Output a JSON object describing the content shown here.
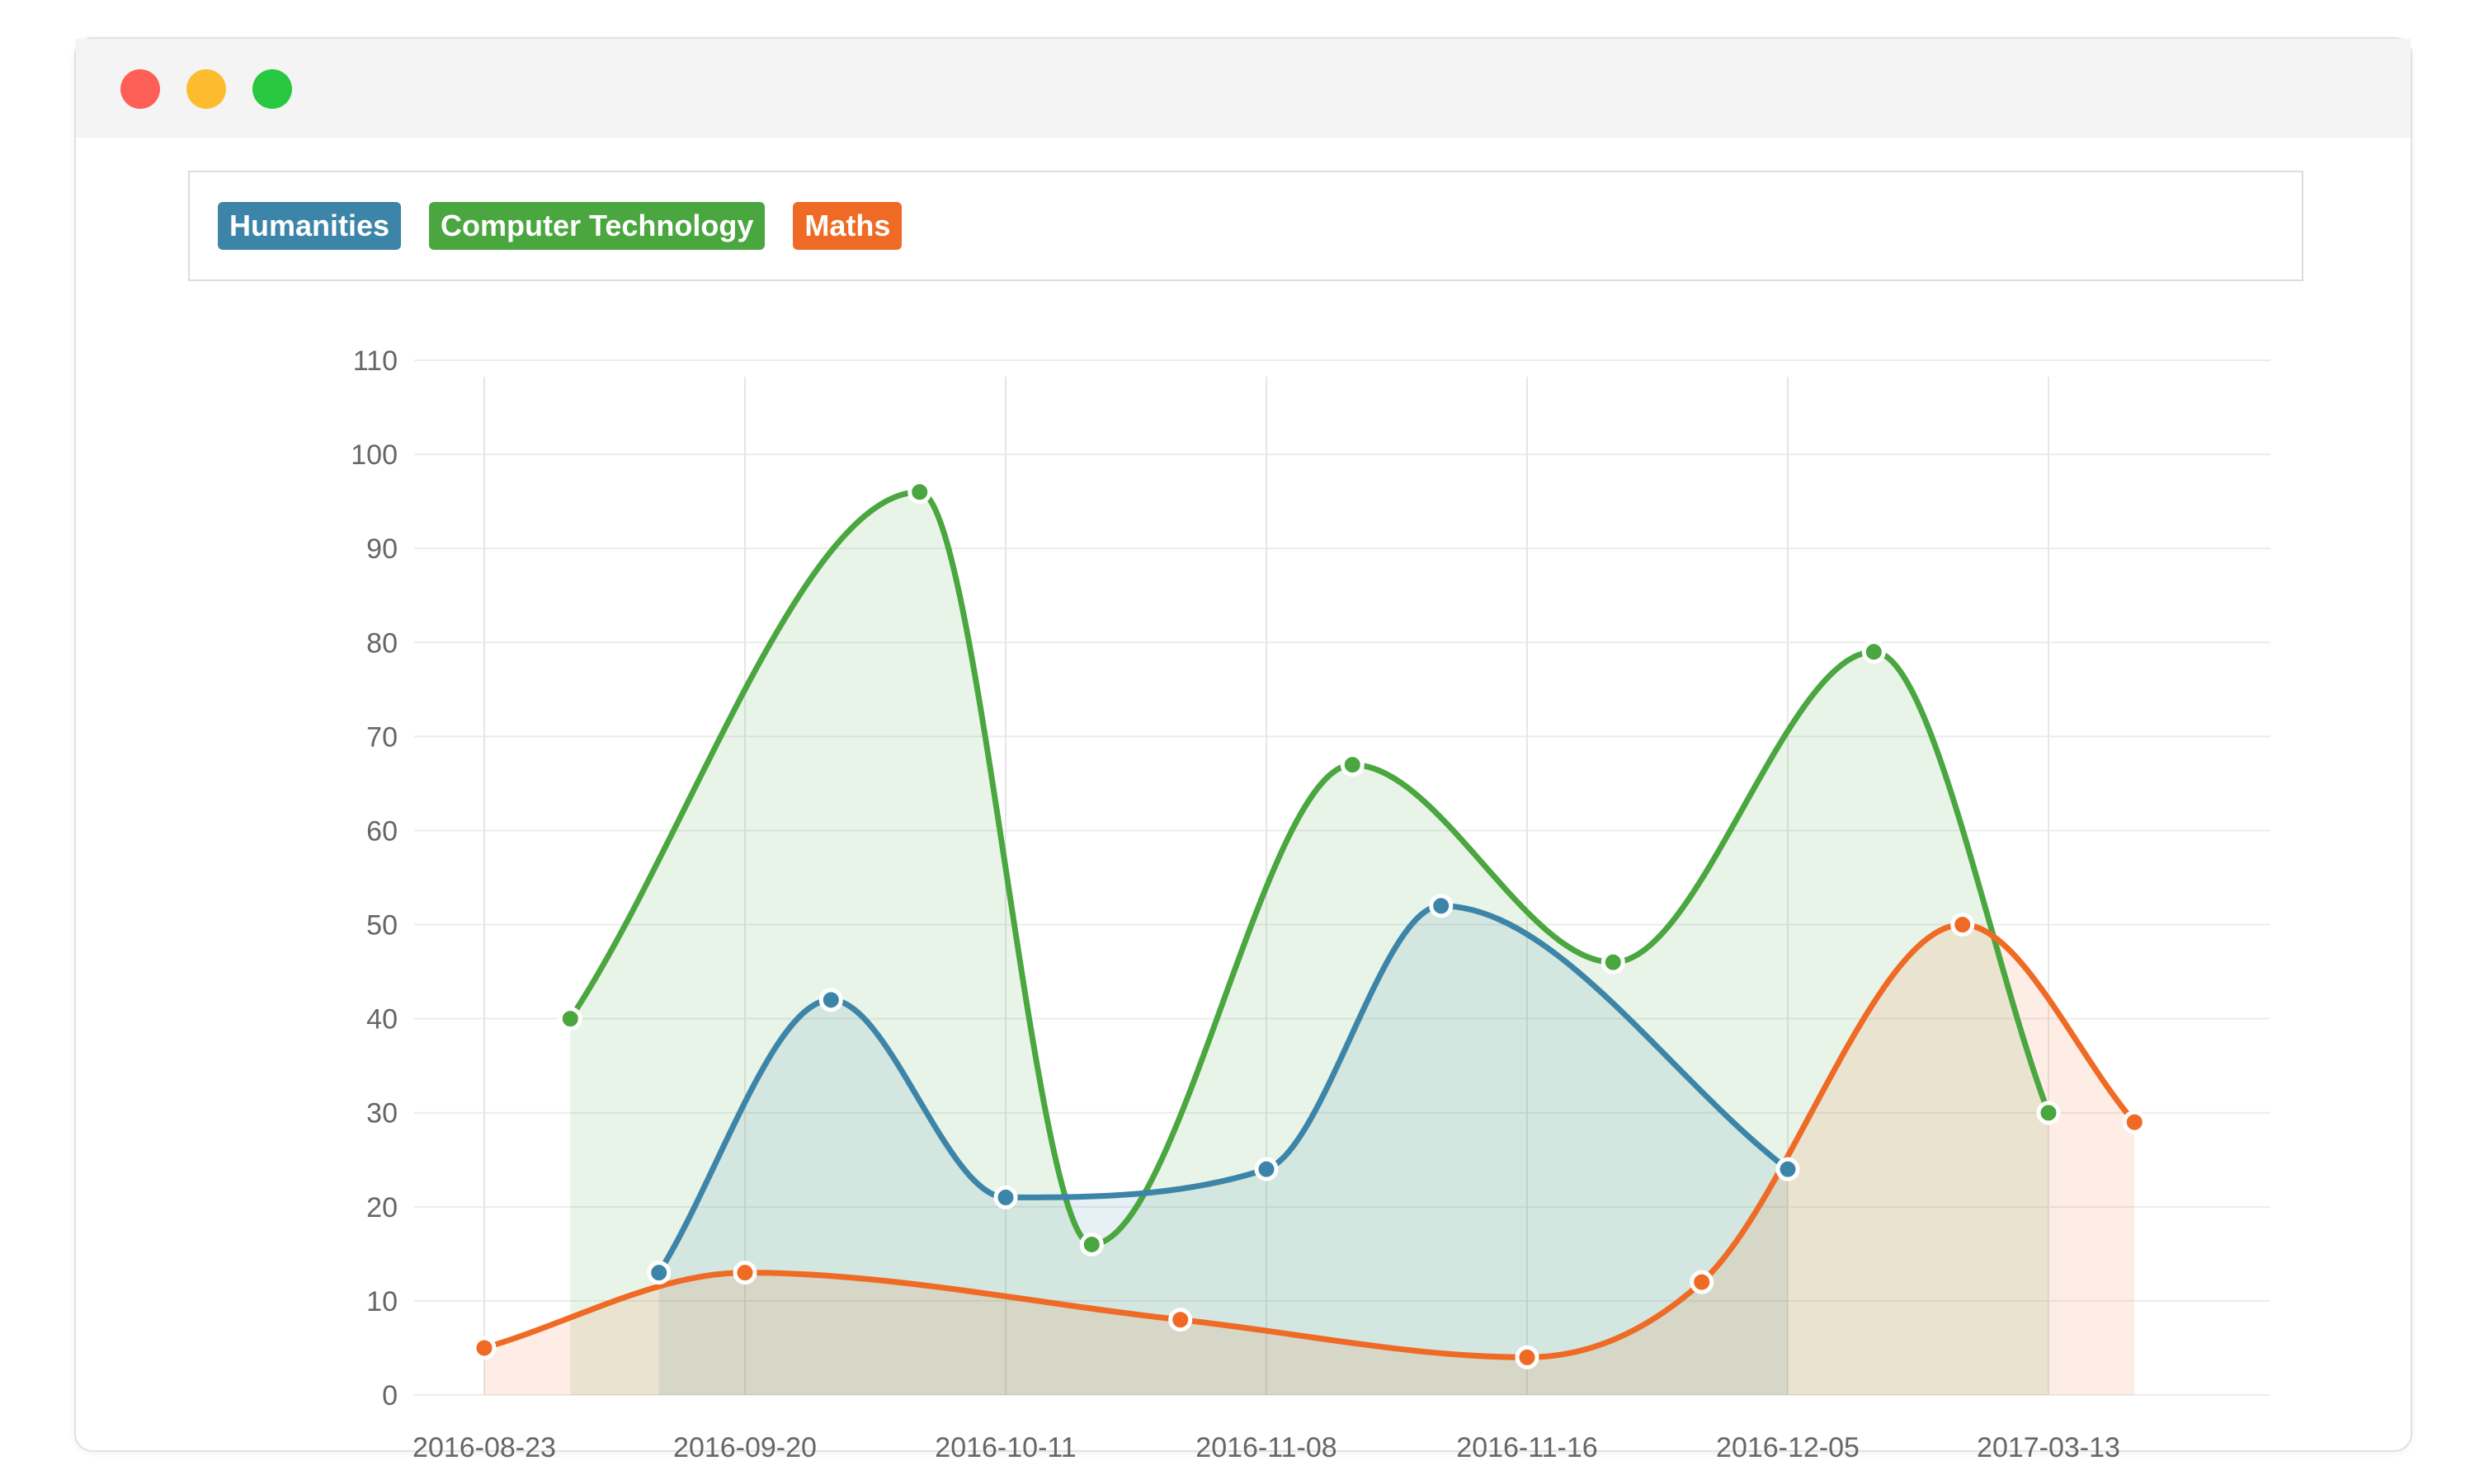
{
  "window": {
    "controls": [
      {
        "name": "close",
        "color": "#fe5f57"
      },
      {
        "name": "minimize",
        "color": "#fdbc2e"
      },
      {
        "name": "maximize",
        "color": "#28c840"
      }
    ]
  },
  "legend": {
    "items": [
      {
        "label": "Humanities",
        "color": "#3d85a8"
      },
      {
        "label": "Computer Technology",
        "color": "#4aa63f"
      },
      {
        "label": "Maths",
        "color": "#ef6a24"
      }
    ]
  },
  "chart_data": {
    "type": "area",
    "title": "",
    "xlabel": "",
    "ylabel": "",
    "categories": [
      "2016-08-23",
      "2016-09-20",
      "2016-10-11",
      "2016-11-08",
      "2016-11-16",
      "2016-12-05",
      "2017-03-13"
    ],
    "ylim": [
      0,
      110
    ],
    "yticks": [
      0,
      10,
      20,
      30,
      40,
      50,
      60,
      70,
      80,
      90,
      100,
      110
    ],
    "grid": true,
    "legend_position": "top-left",
    "series": [
      {
        "name": "Computer Technology",
        "color": "#4aa63f",
        "points": [
          [
            0.33,
            40
          ],
          [
            1.67,
            96
          ],
          [
            2.33,
            16
          ],
          [
            3.33,
            67
          ],
          [
            4.33,
            46
          ],
          [
            5.33,
            79
          ],
          [
            6.0,
            30
          ]
        ]
      },
      {
        "name": "Humanities",
        "color": "#3d85a8",
        "points": [
          [
            0.67,
            13
          ],
          [
            1.33,
            42
          ],
          [
            2.0,
            21
          ],
          [
            3.0,
            24
          ],
          [
            3.67,
            52
          ],
          [
            5.0,
            24
          ]
        ]
      },
      {
        "name": "Maths",
        "color": "#ef6a24",
        "points": [
          [
            0.0,
            5
          ],
          [
            1.0,
            13
          ],
          [
            2.67,
            8
          ],
          [
            4.0,
            4
          ],
          [
            4.67,
            12
          ],
          [
            5.67,
            50
          ],
          [
            6.33,
            29
          ]
        ]
      }
    ]
  }
}
